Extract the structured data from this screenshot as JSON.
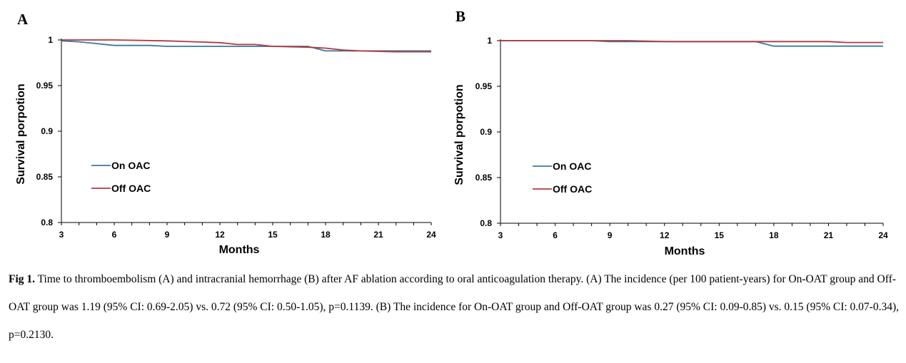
{
  "colors": {
    "on_oac": "#3a7a9c",
    "off_oac": "#b13a3e",
    "axis": "#000000"
  },
  "chart_data": [
    {
      "type": "line",
      "panel_label": "A",
      "xlabel": "Months",
      "ylabel": "Survival porpotion",
      "xlim": [
        3,
        24
      ],
      "ylim": [
        0.8,
        1
      ],
      "x_ticks": [
        3,
        6,
        9,
        12,
        15,
        18,
        21,
        24
      ],
      "y_ticks": [
        0.8,
        0.85,
        0.9,
        0.95,
        1
      ],
      "y_tick_labels": [
        "0.8",
        "0.85",
        "0.9",
        "0.95",
        "1"
      ],
      "legend_position": "left-middle",
      "series": [
        {
          "name": "On OAC",
          "color": "#3a7a9c",
          "x": [
            3,
            4,
            5,
            6,
            8,
            9,
            12,
            14,
            15,
            17,
            18,
            20,
            22,
            24
          ],
          "y": [
            0.999,
            0.998,
            0.996,
            0.994,
            0.994,
            0.993,
            0.993,
            0.993,
            0.993,
            0.993,
            0.988,
            0.988,
            0.988,
            0.988
          ]
        },
        {
          "name": "Off OAC",
          "color": "#b13a3e",
          "x": [
            3,
            6,
            9,
            12,
            13,
            14,
            15,
            17,
            18,
            19,
            20,
            22,
            24
          ],
          "y": [
            1.0,
            1.0,
            0.999,
            0.997,
            0.995,
            0.995,
            0.993,
            0.992,
            0.991,
            0.989,
            0.988,
            0.987,
            0.987
          ]
        }
      ]
    },
    {
      "type": "line",
      "panel_label": "B",
      "xlabel": "Months",
      "ylabel": "Survival porpotion",
      "xlim": [
        3,
        24
      ],
      "ylim": [
        0.8,
        1
      ],
      "x_ticks": [
        3,
        6,
        9,
        12,
        15,
        18,
        21,
        24
      ],
      "y_ticks": [
        0.8,
        0.85,
        0.9,
        0.95,
        1
      ],
      "y_tick_labels": [
        "0.8",
        "0.85",
        "0.9",
        "0.95",
        "1"
      ],
      "legend_position": "left-middle",
      "series": [
        {
          "name": "On OAC",
          "color": "#3a7a9c",
          "x": [
            3,
            8,
            9,
            12,
            15,
            17,
            18,
            21,
            24
          ],
          "y": [
            1.0,
            1.0,
            0.999,
            0.999,
            0.999,
            0.999,
            0.994,
            0.994,
            0.994
          ]
        },
        {
          "name": "Off OAC",
          "color": "#b13a3e",
          "x": [
            3,
            6,
            9,
            10,
            12,
            15,
            18,
            21,
            22,
            24
          ],
          "y": [
            1.0,
            1.0,
            1.0,
            1.0,
            0.999,
            0.999,
            0.999,
            0.999,
            0.998,
            0.998
          ]
        }
      ]
    }
  ],
  "caption": {
    "label": "Fig 1.",
    "text": " Time to thromboembolism (A) and intracranial hemorrhage (B) after AF ablation according to oral anticoagulation therapy. (A) The incidence (per 100 patient-years) for On-OAT group and Off-OAT group was 1.19 (95% CI: 0.69-2.05) vs. 0.72 (95% CI: 0.50-1.05), p=0.1139. (B) The incidence for On-OAT group and Off-OAT group was 0.27 (95% CI: 0.09-0.85) vs. 0.15 (95% CI: 0.07-0.34), p=0.2130."
  }
}
